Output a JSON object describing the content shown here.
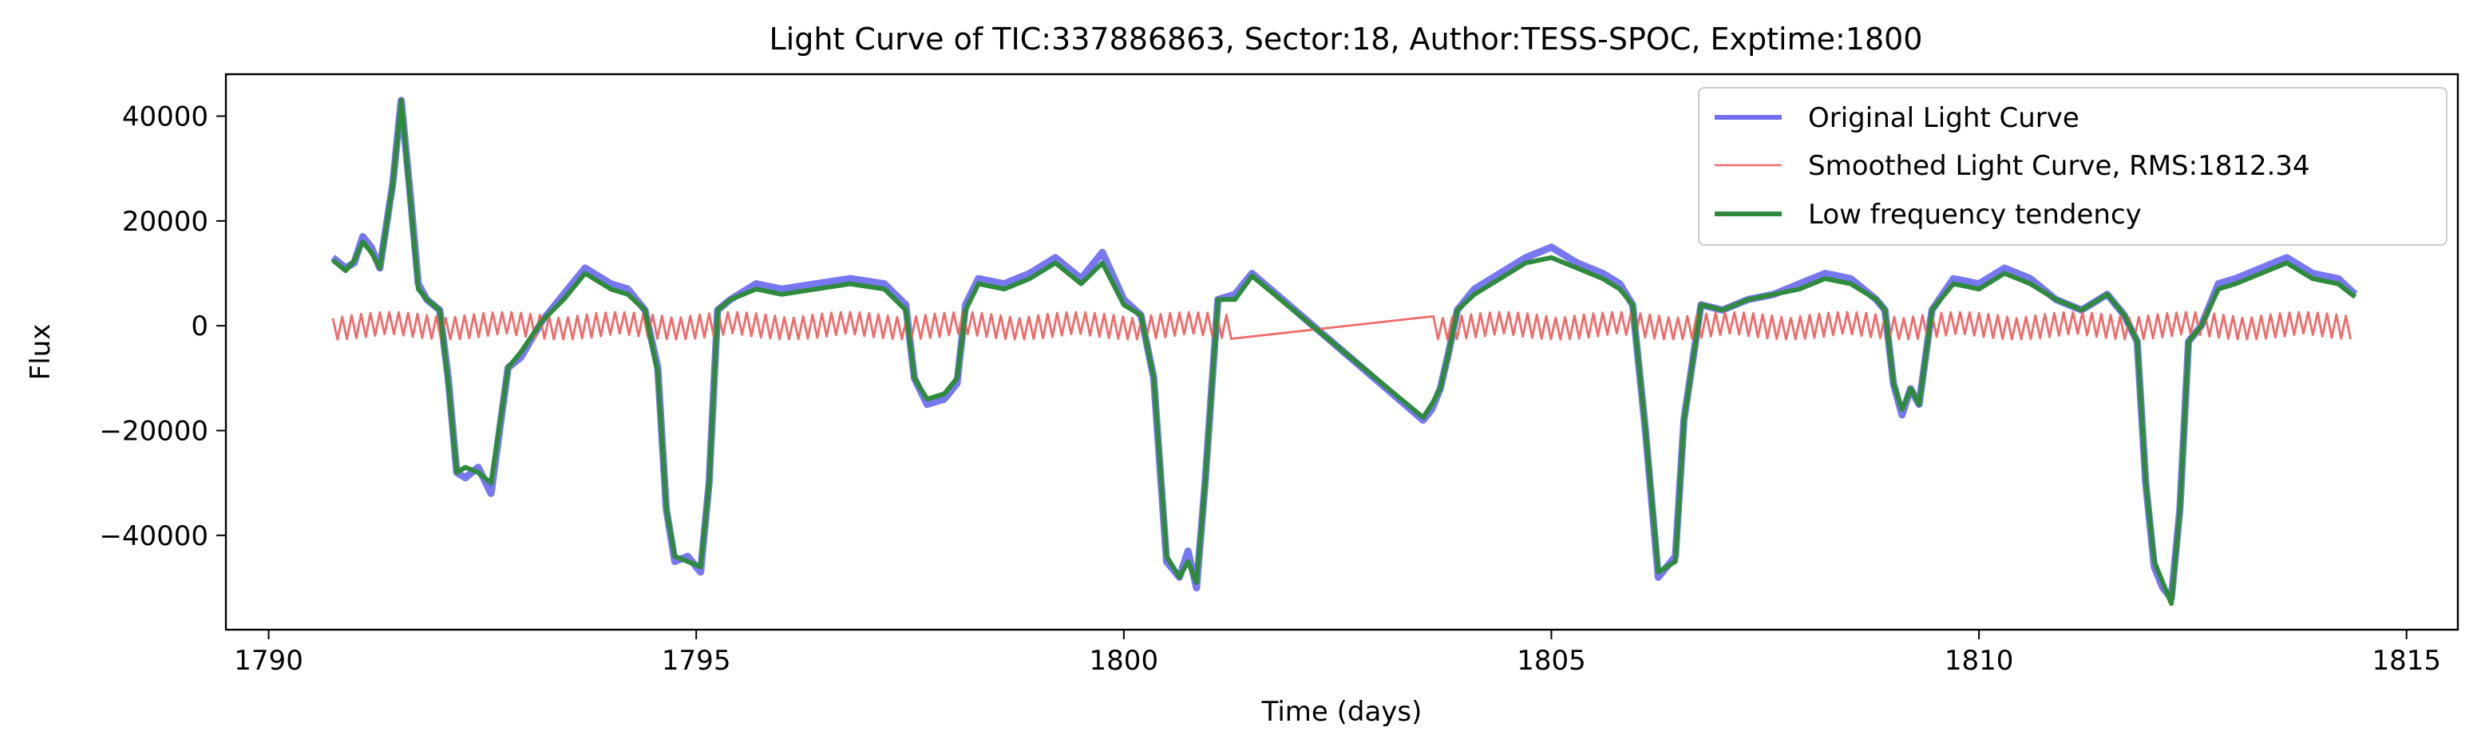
{
  "chart_data": {
    "type": "line",
    "title": "Light Curve of TIC:337886863, Sector:18, Author:TESS-SPOC, Exptime:1800",
    "xlabel": "Time (days)",
    "ylabel": "Flux",
    "xlim": [
      1789.5,
      1815.6
    ],
    "ylim": [
      -58000,
      48000
    ],
    "xticks": [
      1790,
      1795,
      1800,
      1805,
      1810,
      1815
    ],
    "xtick_labels": [
      "1790",
      "1795",
      "1800",
      "1805",
      "1810",
      "1815"
    ],
    "yticks": [
      -40000,
      -20000,
      0,
      20000,
      40000
    ],
    "ytick_labels": [
      "−40000",
      "−20000",
      "0",
      "20000",
      "40000"
    ],
    "grid": false,
    "legend_position": "top-right",
    "series": [
      {
        "name": "Original Light Curve",
        "color": "#7070f0",
        "x": [
          1790.75,
          1790.9,
          1791.0,
          1791.1,
          1791.2,
          1791.3,
          1791.45,
          1791.55,
          1791.65,
          1791.75,
          1791.85,
          1792.0,
          1792.1,
          1792.2,
          1792.3,
          1792.45,
          1792.6,
          1792.8,
          1792.95,
          1793.2,
          1793.45,
          1793.7,
          1794.0,
          1794.2,
          1794.4,
          1794.55,
          1794.65,
          1794.75,
          1794.9,
          1795.05,
          1795.15,
          1795.25,
          1795.4,
          1795.7,
          1796.0,
          1796.4,
          1796.8,
          1797.2,
          1797.45,
          1797.55,
          1797.7,
          1797.9,
          1798.05,
          1798.15,
          1798.3,
          1798.6,
          1798.9,
          1799.2,
          1799.5,
          1799.75,
          1800.0,
          1800.2,
          1800.35,
          1800.5,
          1800.65,
          1800.75,
          1800.85,
          1800.95,
          1801.1,
          1801.3,
          1801.5,
          1803.5,
          1803.6,
          1803.7,
          1803.8,
          1803.9,
          1804.1,
          1804.4,
          1804.7,
          1805.0,
          1805.3,
          1805.6,
          1805.8,
          1805.95,
          1806.1,
          1806.25,
          1806.35,
          1806.45,
          1806.55,
          1806.75,
          1807.0,
          1807.3,
          1807.6,
          1807.9,
          1808.2,
          1808.5,
          1808.8,
          1808.9,
          1809.0,
          1809.1,
          1809.2,
          1809.3,
          1809.45,
          1809.7,
          1810.0,
          1810.3,
          1810.6,
          1810.9,
          1811.2,
          1811.5,
          1811.7,
          1811.85,
          1811.95,
          1812.05,
          1812.15,
          1812.25,
          1812.35,
          1812.45,
          1812.6,
          1812.8,
          1813.0,
          1813.3,
          1813.6,
          1813.9,
          1814.2,
          1814.4
        ],
        "y": [
          13000,
          11000,
          12000,
          17000,
          15000,
          11000,
          27000,
          43000,
          26000,
          8000,
          5000,
          3000,
          -10000,
          -28000,
          -29000,
          -27000,
          -32000,
          -8000,
          -6000,
          1000,
          6000,
          11000,
          8000,
          7000,
          3000,
          -8000,
          -35000,
          -45000,
          -44000,
          -47000,
          -30000,
          3000,
          5000,
          8000,
          7000,
          8000,
          9000,
          8000,
          4000,
          -10000,
          -15000,
          -14000,
          -11000,
          4000,
          9000,
          8000,
          10000,
          13000,
          9000,
          14000,
          5000,
          2000,
          -10000,
          -45000,
          -48000,
          -43000,
          -50000,
          -30000,
          5000,
          6000,
          10000,
          -18000,
          -16000,
          -12000,
          -5000,
          3000,
          7000,
          10000,
          13000,
          15000,
          12000,
          10000,
          8000,
          4000,
          -20000,
          -48000,
          -46000,
          -44000,
          -18000,
          4000,
          3000,
          5000,
          6000,
          8000,
          10000,
          9000,
          5000,
          3000,
          -11000,
          -17000,
          -12000,
          -15000,
          3000,
          9000,
          8000,
          11000,
          9000,
          5000,
          3000,
          6000,
          2000,
          -3000,
          -30000,
          -46000,
          -50000,
          -52000,
          -35000,
          -3000,
          0,
          8000,
          9000,
          11000,
          13000,
          10000,
          9000,
          6000
        ]
      },
      {
        "name": "Smoothed Light Curve, RMS:1812.34",
        "color": "#f06a6a",
        "x_start": 1790.75,
        "x_end": 1814.4,
        "gap": [
          1801.3,
          1803.6
        ],
        "cycle_days": 0.11,
        "amplitude": 2600
      },
      {
        "name": "Low frequency tendency",
        "color": "#2e8b3c",
        "x": [
          1790.75,
          1790.9,
          1791.0,
          1791.1,
          1791.2,
          1791.3,
          1791.45,
          1791.55,
          1791.65,
          1791.75,
          1791.85,
          1792.0,
          1792.1,
          1792.2,
          1792.3,
          1792.45,
          1792.6,
          1792.8,
          1792.95,
          1793.2,
          1793.45,
          1793.7,
          1794.0,
          1794.2,
          1794.4,
          1794.55,
          1794.65,
          1794.75,
          1794.9,
          1795.05,
          1795.15,
          1795.25,
          1795.4,
          1795.7,
          1796.0,
          1796.4,
          1796.8,
          1797.2,
          1797.45,
          1797.55,
          1797.7,
          1797.9,
          1798.05,
          1798.15,
          1798.3,
          1798.6,
          1798.9,
          1799.2,
          1799.5,
          1799.75,
          1800.0,
          1800.2,
          1800.35,
          1800.5,
          1800.65,
          1800.75,
          1800.85,
          1800.95,
          1801.1,
          1801.3,
          1801.5,
          1803.5,
          1803.6,
          1803.7,
          1803.8,
          1803.9,
          1804.1,
          1804.4,
          1804.7,
          1805.0,
          1805.3,
          1805.6,
          1805.8,
          1805.95,
          1806.1,
          1806.25,
          1806.35,
          1806.45,
          1806.55,
          1806.75,
          1807.0,
          1807.3,
          1807.6,
          1807.9,
          1808.2,
          1808.5,
          1808.8,
          1808.9,
          1809.0,
          1809.1,
          1809.2,
          1809.3,
          1809.45,
          1809.7,
          1810.0,
          1810.3,
          1810.6,
          1810.9,
          1811.2,
          1811.5,
          1811.7,
          1811.85,
          1811.95,
          1812.05,
          1812.15,
          1812.25,
          1812.35,
          1812.45,
          1812.6,
          1812.8,
          1813.0,
          1813.3,
          1813.6,
          1813.9,
          1814.2,
          1814.4
        ],
        "y": [
          12500,
          10500,
          12500,
          16000,
          14000,
          11000,
          27000,
          43000,
          25000,
          7000,
          5000,
          3000,
          -11000,
          -28000,
          -27000,
          -28000,
          -30000,
          -8000,
          -5000,
          1000,
          5000,
          10000,
          7000,
          6000,
          3000,
          -9000,
          -35000,
          -44000,
          -45000,
          -46000,
          -30000,
          3000,
          5000,
          7000,
          6000,
          7000,
          8000,
          7000,
          3000,
          -10000,
          -14000,
          -13000,
          -10000,
          3000,
          8000,
          7000,
          9000,
          12000,
          8000,
          12000,
          4000,
          2000,
          -10000,
          -44000,
          -48000,
          -45000,
          -49000,
          -30000,
          5000,
          5000,
          9500,
          -17500,
          -15000,
          -12000,
          -5000,
          3000,
          6000,
          9000,
          12000,
          13000,
          11000,
          9000,
          7000,
          4000,
          -20000,
          -47000,
          -46000,
          -45000,
          -18000,
          4000,
          3000,
          5000,
          6000,
          7000,
          9000,
          8000,
          5000,
          3000,
          -11000,
          -16000,
          -12000,
          -15000,
          3000,
          8000,
          7000,
          10000,
          8000,
          5000,
          3000,
          6000,
          2000,
          -3000,
          -30000,
          -45000,
          -49000,
          -53000,
          -35000,
          -3000,
          0,
          7000,
          8000,
          10000,
          12000,
          9000,
          8000,
          5500
        ]
      }
    ]
  }
}
